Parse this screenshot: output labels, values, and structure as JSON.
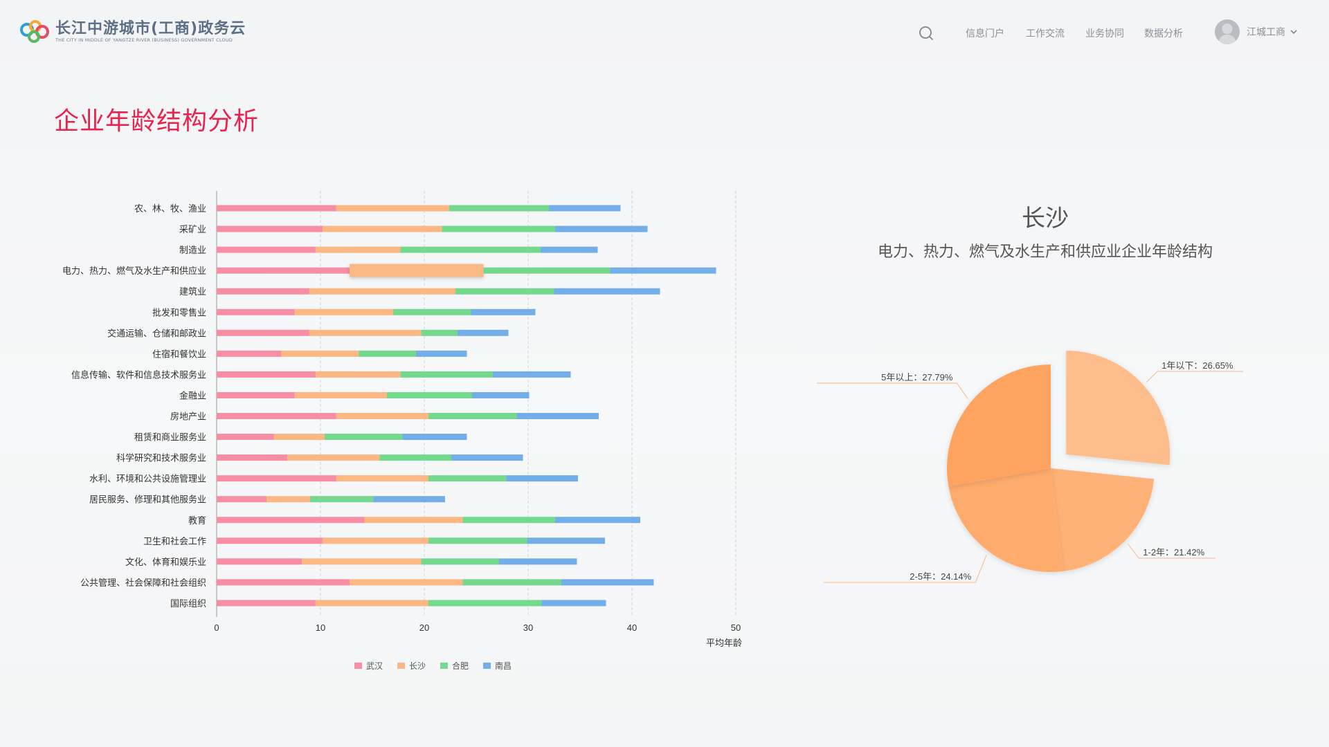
{
  "header": {
    "logo_title": "长江中游城市(工商)政务云",
    "logo_subtitle": "THE CITY IN MIDDLE OF YANGTZE RIVER (BUSINESS) GOVERNMENT CLOUD",
    "nav": [
      "信息门户",
      "工作交流",
      "业务协同",
      "数据分析"
    ],
    "user_name": "江城工商"
  },
  "page_title": "企业年龄结构分析",
  "colors": {
    "武汉": "#f78ea5",
    "长沙": "#fbb784",
    "合肥": "#74d88f",
    "南昌": "#74aee8",
    "title_red": "#e8234e"
  },
  "chart_data": [
    {
      "type": "bar",
      "orientation": "horizontal",
      "stacked": true,
      "xlabel": "平均年龄",
      "xlim": [
        0,
        50
      ],
      "xticks": [
        0,
        10,
        20,
        30,
        40,
        50
      ],
      "grid": true,
      "legend_position": "bottom",
      "categories": [
        "农、林、牧、渔业",
        "采矿业",
        "制造业",
        "电力、热力、燃气及水生产和供应业",
        "建筑业",
        "批发和零售业",
        "交通运输、仓储和邮政业",
        "住宿和餐饮业",
        "信息传输、软件和信息技术服务业",
        "金融业",
        "房地产业",
        "租赁和商业服务业",
        "科学研究和技术服务业",
        "水利、环境和公共设施管理业",
        "居民服务、修理和其他服务业",
        "教育",
        "卫生和社会工作",
        "文化、体育和娱乐业",
        "公共管理、社会保障和社会组织",
        "国际组织"
      ],
      "highlighted": {
        "category": "电力、热力、燃气及水生产和供应业",
        "series": "长沙"
      },
      "series": [
        {
          "name": "武汉",
          "values": [
            11.5,
            10.2,
            9.5,
            12.8,
            8.9,
            7.5,
            8.9,
            6.2,
            9.5,
            7.5,
            11.5,
            5.5,
            6.8,
            11.5,
            4.8,
            14.2,
            10.2,
            8.2,
            12.8,
            9.5
          ]
        },
        {
          "name": "长沙",
          "values": [
            10.9,
            11.5,
            8.2,
            12.9,
            14.1,
            9.5,
            10.8,
            7.5,
            8.2,
            8.9,
            8.9,
            4.9,
            8.9,
            8.9,
            4.2,
            9.5,
            10.2,
            11.5,
            10.9,
            10.9
          ]
        },
        {
          "name": "合肥",
          "values": [
            9.6,
            10.9,
            13.5,
            12.2,
            9.5,
            7.5,
            3.5,
            5.5,
            8.9,
            8.2,
            8.5,
            7.5,
            6.9,
            7.5,
            6.1,
            8.9,
            9.5,
            7.5,
            9.5,
            10.9
          ]
        },
        {
          "name": "南昌",
          "values": [
            6.9,
            8.9,
            5.5,
            10.2,
            10.2,
            6.2,
            4.9,
            4.9,
            7.5,
            5.5,
            7.9,
            6.2,
            6.9,
            6.9,
            6.9,
            8.2,
            7.5,
            7.5,
            8.9,
            6.2
          ]
        }
      ]
    },
    {
      "type": "pie",
      "city": "长沙",
      "title": "电力、热力、燃气及水生产和供应业企业年龄结构",
      "slices": [
        {
          "label": "1年以下",
          "value": 26.65,
          "text": "1年以下：26.65%",
          "color": "#fdbd8c"
        },
        {
          "label": "1-2年",
          "value": 21.42,
          "text": "1-2年：21.42%",
          "color": "#ffb277"
        },
        {
          "label": "2-5年",
          "value": 24.14,
          "text": "2-5年：24.14%",
          "color": "#feab6d"
        },
        {
          "label": "5年以上",
          "value": 27.79,
          "text": "5年以上：27.79%",
          "color": "#ffa461"
        }
      ]
    }
  ]
}
